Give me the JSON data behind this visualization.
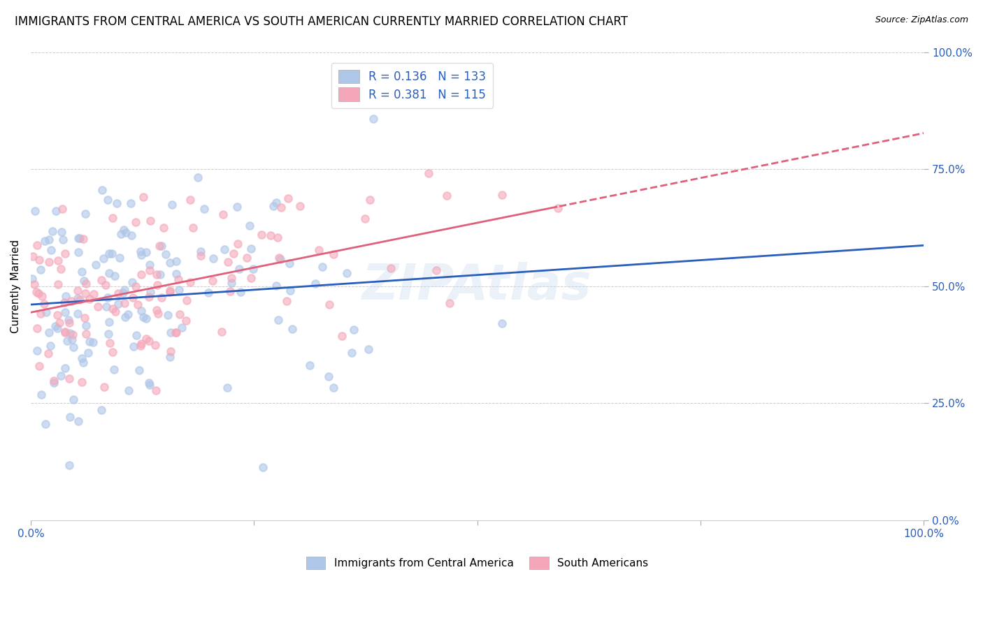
{
  "title": "IMMIGRANTS FROM CENTRAL AMERICA VS SOUTH AMERICAN CURRENTLY MARRIED CORRELATION CHART",
  "source": "Source: ZipAtlas.com",
  "ylabel": "Currently Married",
  "ytick_values": [
    0.0,
    0.25,
    0.5,
    0.75,
    1.0
  ],
  "xtick_values": [
    0.0,
    0.25,
    0.5,
    0.75,
    1.0
  ],
  "blue_color": "#aec6e8",
  "pink_color": "#f4a7b9",
  "blue_line_color": "#2a5ebc",
  "pink_line_color": "#e0607a",
  "R_blue": 0.136,
  "N_blue": 133,
  "R_pink": 0.381,
  "N_pink": 115,
  "legend_label_blue": "Immigrants from Central America",
  "legend_label_pink": "South Americans",
  "watermark": "ZIPAtlas",
  "xlim": [
    0.0,
    1.0
  ],
  "ylim": [
    0.0,
    1.0
  ],
  "figsize": [
    14.06,
    8.92
  ],
  "dpi": 100,
  "background_color": "#ffffff",
  "grid_color": "#cccccc",
  "title_fontsize": 12,
  "axis_label_color": "#2a5ebc",
  "scatter_size": 60,
  "scatter_alpha": 0.6,
  "watermark_color": "#c5d8f0",
  "watermark_fontsize": 52,
  "watermark_alpha": 0.35,
  "seed_blue": 17,
  "seed_pink": 31
}
